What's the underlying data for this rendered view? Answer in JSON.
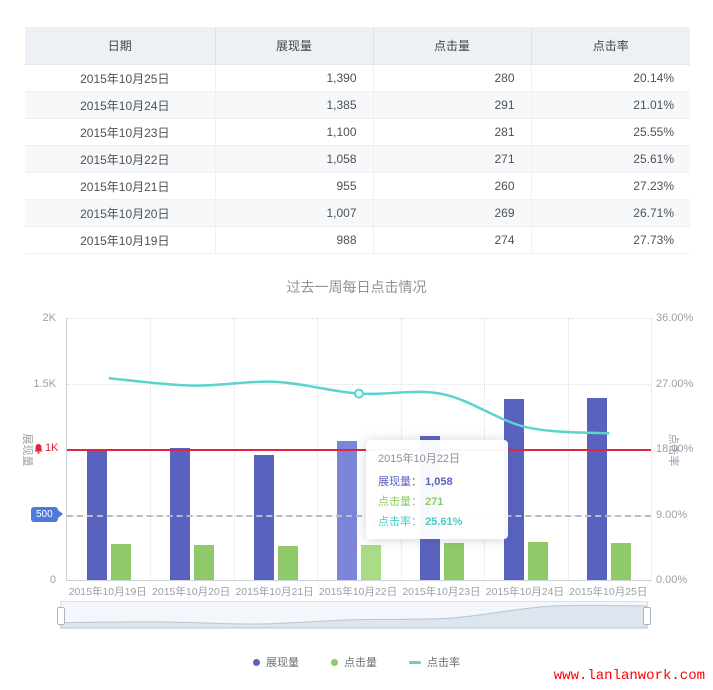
{
  "table": {
    "headers": [
      "日期",
      "展现量",
      "点击量",
      "点击率"
    ],
    "rows": [
      [
        "2015年10月25日",
        "1,390",
        "280",
        "20.14%"
      ],
      [
        "2015年10月24日",
        "1,385",
        "291",
        "21.01%"
      ],
      [
        "2015年10月23日",
        "1,100",
        "281",
        "25.55%"
      ],
      [
        "2015年10月22日",
        "1,058",
        "271",
        "25.61%"
      ],
      [
        "2015年10月21日",
        "955",
        "260",
        "27.23%"
      ],
      [
        "2015年10月20日",
        "1,007",
        "269",
        "26.71%"
      ],
      [
        "2015年10月19日",
        "988",
        "274",
        "27.73%"
      ]
    ]
  },
  "chart_data": {
    "type": "bar",
    "title": "过去一周每日点击情况",
    "categories": [
      "2015年10月19日",
      "2015年10月20日",
      "2015年10月21日",
      "2015年10月22日",
      "2015年10月23日",
      "2015年10月24日",
      "2015年10月25日"
    ],
    "series": [
      {
        "id": "impressions",
        "name": "展现量",
        "type": "bar",
        "axis": "left",
        "color": "#5962bf",
        "highlight_color": "#7d85da",
        "values": [
          988,
          1007,
          955,
          1058,
          1100,
          1385,
          1390
        ]
      },
      {
        "id": "clicks",
        "name": "点击量",
        "type": "bar",
        "axis": "left",
        "color": "#8fc969",
        "highlight_color": "#a9dc87",
        "values": [
          274,
          269,
          260,
          271,
          281,
          291,
          280
        ]
      },
      {
        "id": "ctr",
        "name": "点击率",
        "type": "line",
        "axis": "right",
        "color": "#5bd3cf",
        "values": [
          27.73,
          26.71,
          27.23,
          25.61,
          25.55,
          21.01,
          20.14
        ]
      }
    ],
    "left_axis": {
      "name": "展现量",
      "min": 0,
      "max": 2000,
      "ticks": [
        {
          "label": "2K",
          "value": 2000
        },
        {
          "label": "1.5K",
          "value": 1500
        },
        {
          "label": "0",
          "value": 0
        }
      ]
    },
    "right_axis": {
      "name": "点击率",
      "min": 0,
      "max": 36,
      "ticks": [
        {
          "label": "36.00%",
          "value": 36
        },
        {
          "label": "27.00%",
          "value": 27
        },
        {
          "label": "18.00%",
          "value": 18
        },
        {
          "label": "9.00%",
          "value": 9
        },
        {
          "label": "0.00%",
          "value": 0
        }
      ]
    },
    "marklines": [
      {
        "label": "1K",
        "value": 1000,
        "style": "solid",
        "color": "#e1253f",
        "marker": "alarm-bell"
      },
      {
        "label": "500",
        "value": 500,
        "style": "dashed",
        "color": "#4e79dd",
        "marker": "badge"
      }
    ],
    "highlight_index": 3,
    "tooltip": {
      "title": "2015年10月22日",
      "items": [
        {
          "label": "展现量",
          "value": "1,058",
          "color": "#5962bf"
        },
        {
          "label": "点击量",
          "value": "271",
          "color": "#8fc969"
        },
        {
          "label": "点击率",
          "value": "25.61%",
          "color": "#49ccc5"
        }
      ]
    },
    "legend": [
      {
        "id": "impressions",
        "label": "展现量",
        "color": "#5962bf",
        "marker": "dot"
      },
      {
        "id": "clicks",
        "label": "点击量",
        "color": "#8fc969",
        "marker": "dot"
      },
      {
        "id": "ctr",
        "label": "点击率",
        "color": "#5bd3cf",
        "marker": "dash"
      }
    ],
    "legend_position": "bottom",
    "grid": true
  },
  "watermark": "www.lanlanwork.com"
}
